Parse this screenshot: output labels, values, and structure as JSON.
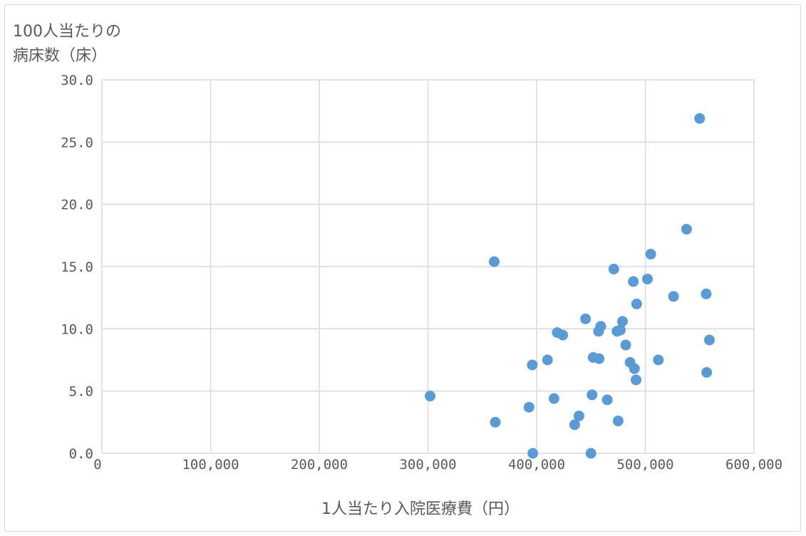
{
  "chart_data": {
    "type": "scatter",
    "title": "",
    "xlabel": "1人当たり入院医療費（円）",
    "ylabel": [
      "100人当たりの",
      "病床数（床）"
    ],
    "xlim": [
      0,
      600000
    ],
    "ylim": [
      0,
      30
    ],
    "xticks": [
      0,
      100000,
      200000,
      300000,
      400000,
      500000,
      600000
    ],
    "xtick_labels": [
      "0",
      "100,000",
      "200,000",
      "300,000",
      "400,000",
      "500,000",
      "600,000"
    ],
    "yticks": [
      0,
      5,
      10,
      15,
      20,
      25,
      30
    ],
    "ytick_labels": [
      "0.0",
      "5.0",
      "10.0",
      "15.0",
      "20.0",
      "25.0",
      "30.0"
    ],
    "grid": true,
    "legend": "none",
    "marker_color": "#5b9bd5",
    "grid_color": "#d9d9d9",
    "series": [
      {
        "points": [
          [
            302000,
            4.6
          ],
          [
            361000,
            15.4
          ],
          [
            362000,
            2.5
          ],
          [
            393000,
            3.7
          ],
          [
            396000,
            7.1
          ],
          [
            396500,
            0.0
          ],
          [
            410000,
            7.5
          ],
          [
            416000,
            4.4
          ],
          [
            419000,
            9.7
          ],
          [
            424000,
            9.5
          ],
          [
            435000,
            2.3
          ],
          [
            439000,
            3.0
          ],
          [
            445000,
            10.8
          ],
          [
            450000,
            0.0
          ],
          [
            451000,
            4.7
          ],
          [
            452000,
            7.7
          ],
          [
            457000,
            9.8
          ],
          [
            457500,
            7.6
          ],
          [
            459000,
            10.2
          ],
          [
            465000,
            4.3
          ],
          [
            471000,
            14.8
          ],
          [
            474000,
            9.8
          ],
          [
            475000,
            2.6
          ],
          [
            477000,
            9.9
          ],
          [
            479000,
            10.6
          ],
          [
            482000,
            8.7
          ],
          [
            486000,
            7.3
          ],
          [
            489000,
            13.8
          ],
          [
            490000,
            6.8
          ],
          [
            491500,
            5.9
          ],
          [
            492000,
            12.0
          ],
          [
            502000,
            14.0
          ],
          [
            505000,
            16.0
          ],
          [
            512000,
            7.5
          ],
          [
            526000,
            12.6
          ],
          [
            538000,
            18.0
          ],
          [
            550000,
            26.9
          ],
          [
            556000,
            12.8
          ],
          [
            556500,
            6.5
          ],
          [
            559000,
            9.1
          ]
        ]
      }
    ]
  }
}
